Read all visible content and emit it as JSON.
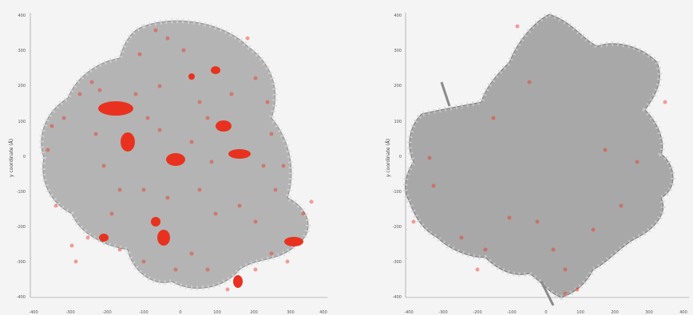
{
  "panels": [
    {
      "id": "left",
      "ylabel": "y coordinate (Å)",
      "x_ticks": [
        "-400",
        "-300",
        "-200",
        "-100",
        "0",
        "100",
        "200",
        "300",
        "400"
      ],
      "y_ticks": [
        "400",
        "300",
        "200",
        "100",
        "0",
        "-100",
        "-200",
        "-300",
        "-400"
      ],
      "colors": {
        "protein": "#a9a9a9",
        "highlight": "#e8321f"
      }
    },
    {
      "id": "right",
      "ylabel": "y coordinate (Å)",
      "x_ticks": [
        "-400",
        "-300",
        "-200",
        "-100",
        "0",
        "100",
        "200",
        "300",
        "400"
      ],
      "y_ticks": [
        "400",
        "300",
        "200",
        "100",
        "0",
        "-100",
        "-200",
        "-300",
        "-400"
      ],
      "colors": {
        "protein": "#a9a9a9",
        "highlight": "#e8321f"
      }
    }
  ]
}
